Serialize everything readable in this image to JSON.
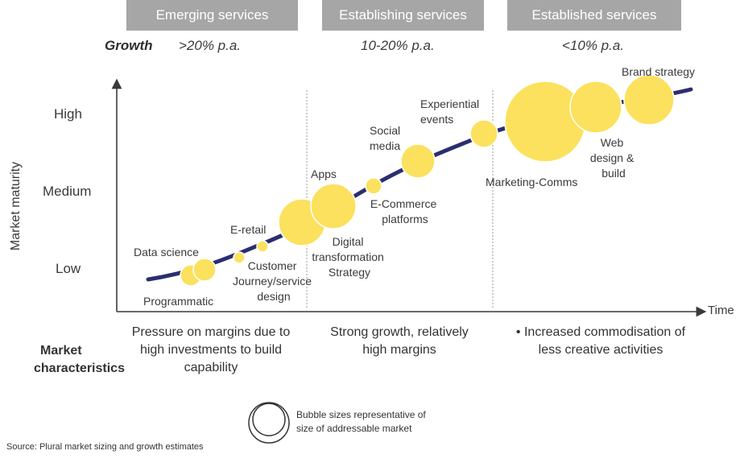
{
  "phases": [
    {
      "name": "Emerging services",
      "growth": ">20% p.a."
    },
    {
      "name": "Establishing services",
      "growth": "10-20% p.a."
    },
    {
      "name": "Established services",
      "growth": "<10% p.a."
    }
  ],
  "growth_title": "Growth",
  "y_axis": {
    "label": "Market maturity",
    "ticks": [
      "High",
      "Medium",
      "Low"
    ]
  },
  "x_axis": {
    "label": "Time"
  },
  "services": {
    "data_science": "Data science",
    "programmatic": "Programmatic",
    "e_retail": "E-retail",
    "customer_journey": [
      "Customer",
      "Journey/service",
      "design"
    ],
    "apps": "Apps",
    "digital_transformation": [
      "Digital",
      "transformation",
      "Strategy"
    ],
    "ecommerce": [
      "E-Commerce",
      "platforms"
    ],
    "social_media": [
      "Social",
      "media"
    ],
    "experiential_events": [
      "Experiential",
      "events"
    ],
    "marketing_comms": "Marketing-Comms",
    "web_design": [
      "Web",
      "design &",
      "build"
    ],
    "brand_strategy": "Brand strategy"
  },
  "market_characteristics": {
    "title": [
      "Market",
      "characteristics"
    ],
    "emerging": [
      "Pressure on margins due to",
      "high investments to build",
      "capability"
    ],
    "establishing": [
      "Strong growth, relatively",
      "high margins"
    ],
    "established": [
      "•  Increased commodisation of",
      "less creative activities"
    ]
  },
  "legend": [
    "Bubble sizes representative of",
    "size of addressable market"
  ],
  "source": "Source: Plural market sizing and growth estimates",
  "colors": {
    "bubble": "#fbe15d",
    "curve": "#2b2e6e",
    "phase_box": "#a6a6a6"
  }
}
